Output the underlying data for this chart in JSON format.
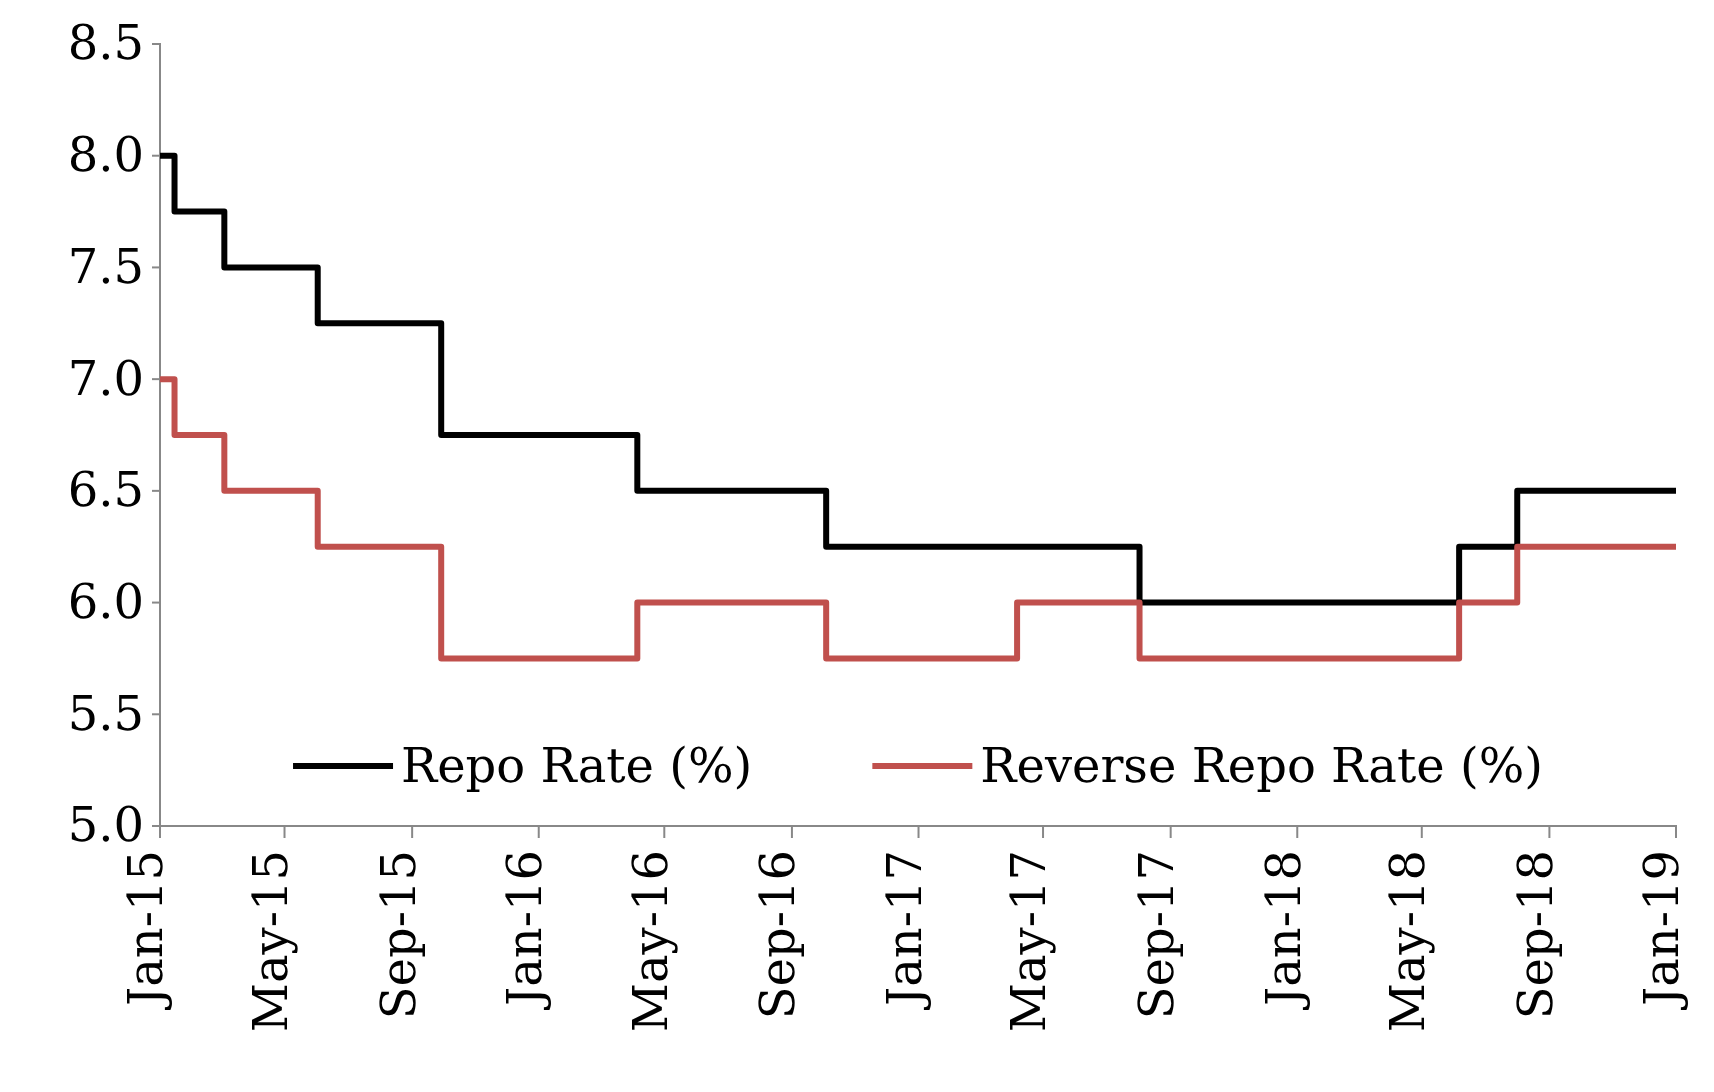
{
  "chart_data": {
    "type": "step",
    "xlim": [
      "2015-01",
      "2019-01"
    ],
    "ylim": [
      5.0,
      8.5
    ],
    "xticks": [
      {
        "value": "2015-01",
        "label": "Jan-15"
      },
      {
        "value": "2015-05",
        "label": "May-15"
      },
      {
        "value": "2015-09",
        "label": "Sep-15"
      },
      {
        "value": "2016-01",
        "label": "Jan-16"
      },
      {
        "value": "2016-05",
        "label": "May-16"
      },
      {
        "value": "2016-09",
        "label": "Sep-16"
      },
      {
        "value": "2017-01",
        "label": "Jan-17"
      },
      {
        "value": "2017-05",
        "label": "May-17"
      },
      {
        "value": "2017-09",
        "label": "Sep-17"
      },
      {
        "value": "2018-01",
        "label": "Jan-18"
      },
      {
        "value": "2018-05",
        "label": "May-18"
      },
      {
        "value": "2018-09",
        "label": "Sep-18"
      },
      {
        "value": "2019-01",
        "label": "Jan-19"
      }
    ],
    "yticks": [
      {
        "value": 5.0,
        "label": "5.0"
      },
      {
        "value": 5.5,
        "label": "5.5"
      },
      {
        "value": 6.0,
        "label": "6.0"
      },
      {
        "value": 6.5,
        "label": "6.5"
      },
      {
        "value": 7.0,
        "label": "7.0"
      },
      {
        "value": 7.5,
        "label": "7.5"
      },
      {
        "value": 8.0,
        "label": "8.0"
      },
      {
        "value": 8.5,
        "label": "8.5"
      }
    ],
    "grid": false,
    "legend": "bottom",
    "marker": "none",
    "line_style": "solid",
    "series": [
      {
        "name": "Repo Rate (%)",
        "color": "#000000",
        "x": [
          "2015-01-01",
          "2015-01-15",
          "2015-03-04",
          "2015-06-02",
          "2015-09-29",
          "2016-04-05",
          "2016-10-04",
          "2017-08-02",
          "2018-06-06",
          "2018-08-01",
          "2019-01-01"
        ],
        "values": [
          8.0,
          7.75,
          7.5,
          7.25,
          6.75,
          6.5,
          6.25,
          6.0,
          6.25,
          6.5,
          6.5
        ]
      },
      {
        "name": "Reverse Repo Rate (%)",
        "color": "#c0504d",
        "x": [
          "2015-01-01",
          "2015-01-15",
          "2015-03-04",
          "2015-06-02",
          "2015-09-29",
          "2016-04-05",
          "2016-10-04",
          "2017-04-06",
          "2017-08-02",
          "2018-06-06",
          "2018-08-01",
          "2019-01-01"
        ],
        "values": [
          7.0,
          6.75,
          6.5,
          6.25,
          5.75,
          6.0,
          5.75,
          6.0,
          5.75,
          6.0,
          6.25,
          6.25
        ]
      }
    ]
  }
}
